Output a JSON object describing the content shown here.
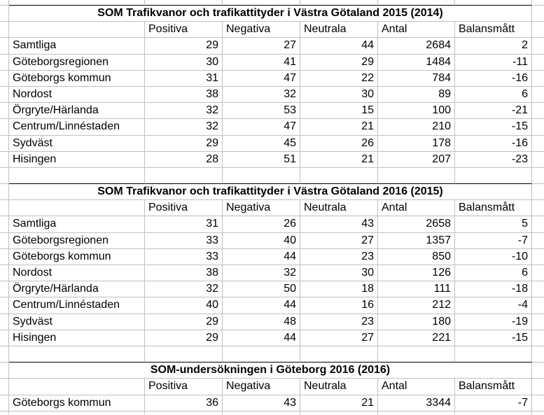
{
  "app": {
    "kind": "spreadsheet",
    "colors": {
      "background": "#ffffff",
      "gridline": "#c0c0c0",
      "title_top_border": "#000000",
      "text": "#000000"
    }
  },
  "tables": [
    {
      "title": "SOM Trafikvanor och trafikattityder i Västra Götaland 2015 (2014)",
      "headers": [
        "Positiva",
        "Negativa",
        "Neutrala",
        "Antal",
        "Balansmått"
      ],
      "rows": [
        {
          "label": "Samtliga",
          "values": [
            29,
            27,
            44,
            2684,
            2
          ]
        },
        {
          "label": "Göteborgsregionen",
          "values": [
            30,
            41,
            29,
            1484,
            -11
          ]
        },
        {
          "label": "Göteborgs kommun",
          "values": [
            31,
            47,
            22,
            784,
            -16
          ]
        },
        {
          "label": "Nordost",
          "values": [
            38,
            32,
            30,
            89,
            6
          ]
        },
        {
          "label": "Örgryte/Härlanda",
          "values": [
            32,
            53,
            15,
            100,
            -21
          ]
        },
        {
          "label": "Centrum/Linnéstaden",
          "values": [
            32,
            47,
            21,
            210,
            -15
          ]
        },
        {
          "label": "Sydväst",
          "values": [
            29,
            45,
            26,
            178,
            -16
          ]
        },
        {
          "label": "Hisingen",
          "values": [
            28,
            51,
            21,
            207,
            -23
          ]
        }
      ]
    },
    {
      "title": "SOM Trafikvanor och trafikattityder i Västra Götaland 2016 (2015)",
      "headers": [
        "Positiva",
        "Negativa",
        "Neutrala",
        "Antal",
        "Balansmått"
      ],
      "rows": [
        {
          "label": "Samtliga",
          "values": [
            31,
            26,
            43,
            2658,
            5
          ]
        },
        {
          "label": "Göteborgsregionen",
          "values": [
            33,
            40,
            27,
            1357,
            -7
          ]
        },
        {
          "label": "Göteborgs kommun",
          "values": [
            33,
            44,
            23,
            850,
            -10
          ]
        },
        {
          "label": "Nordost",
          "values": [
            38,
            32,
            30,
            126,
            6
          ]
        },
        {
          "label": "Örgryte/Härlanda",
          "values": [
            32,
            50,
            18,
            111,
            -18
          ]
        },
        {
          "label": "Centrum/Linnéstaden",
          "values": [
            40,
            44,
            16,
            212,
            -4
          ]
        },
        {
          "label": "Sydväst",
          "values": [
            29,
            48,
            23,
            180,
            -19
          ]
        },
        {
          "label": "Hisingen",
          "values": [
            29,
            44,
            27,
            221,
            -15
          ]
        }
      ]
    },
    {
      "title": "SOM-undersökningen i Göteborg 2016 (2016)",
      "headers": [
        "Positiva",
        "Negativa",
        "Neutrala",
        "Antal",
        "Balansmått"
      ],
      "rows": [
        {
          "label": "Göteborgs kommun",
          "values": [
            36,
            43,
            21,
            3344,
            -7
          ]
        }
      ]
    }
  ]
}
